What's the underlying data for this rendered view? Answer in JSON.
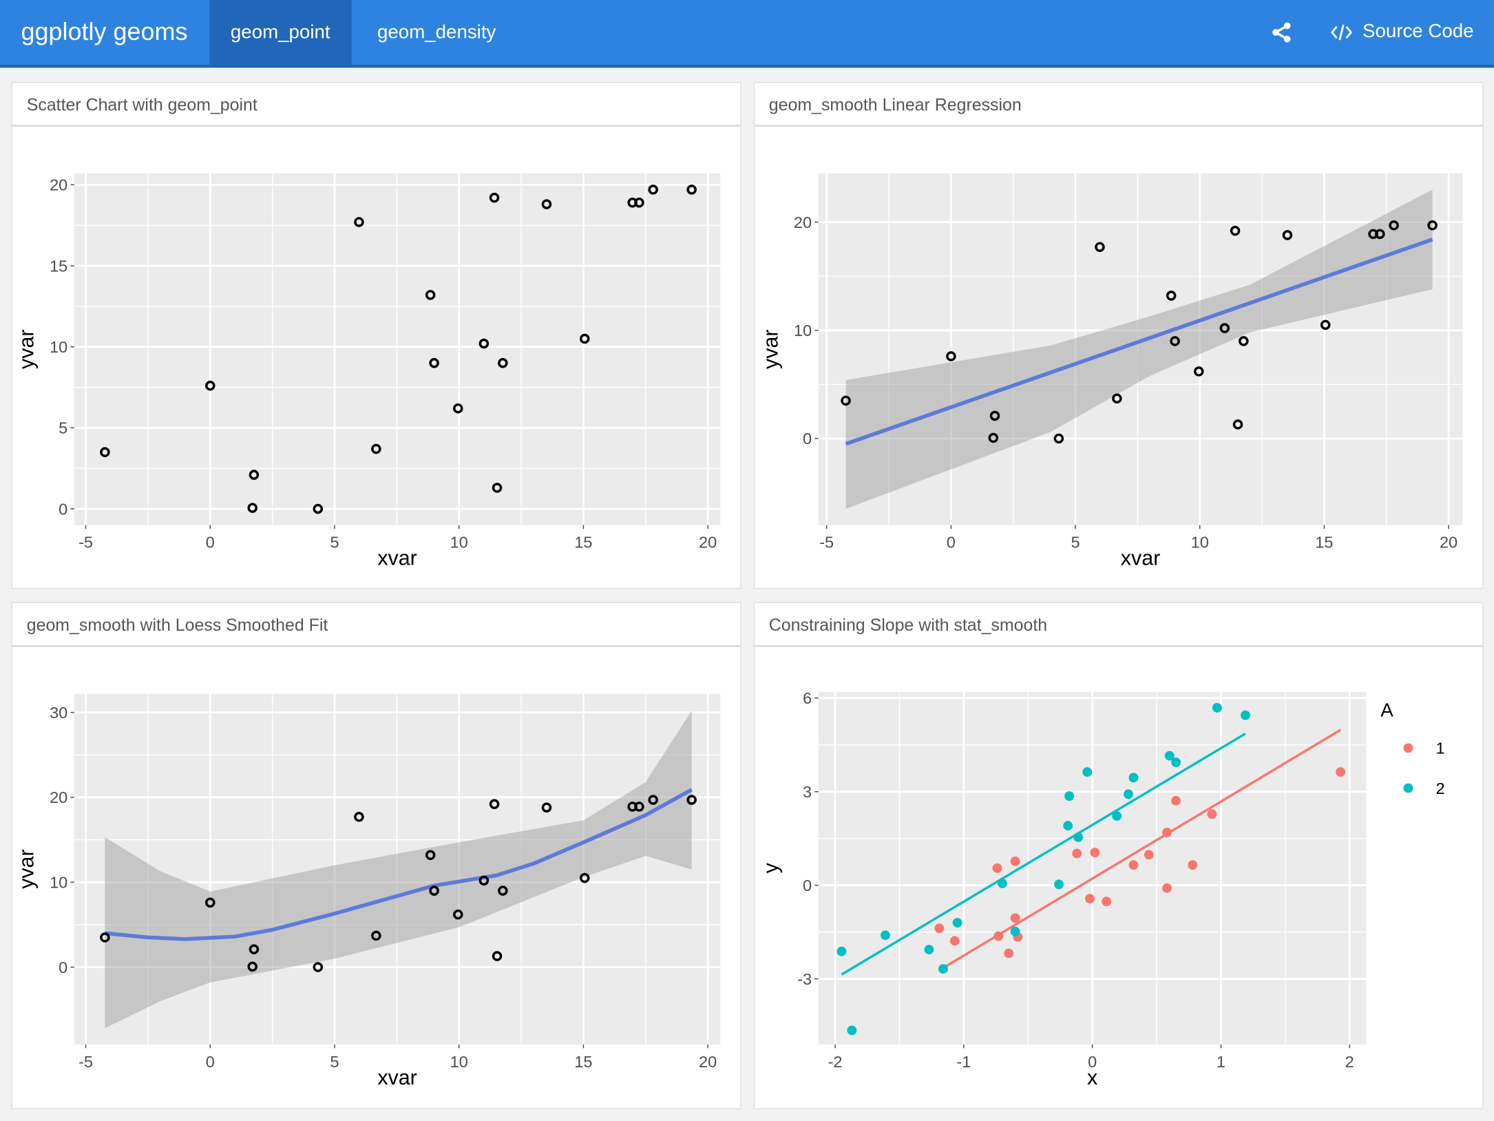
{
  "header": {
    "title": "ggplotly geoms",
    "tabs": [
      {
        "label": "geom_point",
        "active": true
      },
      {
        "label": "geom_density",
        "active": false
      }
    ],
    "share_icon": "share-icon",
    "source_code_icon": "code-icon",
    "source_code_label": "Source Code",
    "colors": {
      "navbar": "#2f83e0",
      "active_tab": "#2166b8"
    }
  },
  "cards": [
    {
      "title": "Scatter Chart with geom_point"
    },
    {
      "title": "geom_smooth Linear Regression"
    },
    {
      "title": "geom_smooth with Loess Smoothed Fit"
    },
    {
      "title": "Constraining Slope with stat_smooth"
    }
  ],
  "chart_data": [
    {
      "type": "scatter",
      "xlabel": "xvar",
      "ylabel": "yvar",
      "xlim": [
        -5.46,
        20.5
      ],
      "ylim": [
        -1,
        20.7
      ],
      "xticks": [
        -5,
        0,
        5,
        10,
        15,
        20
      ],
      "yticks": [
        0,
        5,
        10,
        15,
        20
      ],
      "grid": true,
      "points": {
        "x": [
          -4.23,
          0,
          1.76,
          1.7,
          4.33,
          5.98,
          6.67,
          8.85,
          9.0,
          9.96,
          11.0,
          11.42,
          11.53,
          11.76,
          13.52,
          15.05,
          16.97,
          17.24,
          17.8,
          19.35
        ],
        "y": [
          3.5,
          7.6,
          2.1,
          0.06,
          0,
          17.7,
          3.7,
          13.2,
          9.0,
          6.2,
          10.2,
          19.2,
          1.3,
          9.0,
          18.8,
          10.5,
          18.9,
          18.9,
          19.7,
          19.7
        ]
      }
    },
    {
      "type": "scatter",
      "xlabel": "xvar",
      "ylabel": "yvar",
      "xlim": [
        -5.33,
        20.56
      ],
      "ylim": [
        -8.0,
        24.5
      ],
      "xticks": [
        -5,
        0,
        5,
        10,
        15,
        20
      ],
      "yticks": [
        0,
        10,
        20
      ],
      "grid": true,
      "points": {
        "x": [
          -4.23,
          0,
          1.76,
          1.7,
          4.33,
          5.98,
          6.67,
          8.85,
          9.0,
          9.96,
          11.0,
          11.42,
          11.53,
          11.76,
          13.52,
          15.05,
          16.97,
          17.24,
          17.8,
          19.35
        ],
        "y": [
          3.5,
          7.6,
          2.1,
          0.06,
          0,
          17.7,
          3.7,
          13.2,
          9.0,
          6.2,
          10.2,
          19.2,
          1.3,
          9.0,
          18.8,
          10.5,
          18.9,
          18.9,
          19.7,
          19.7
        ]
      },
      "fit": {
        "method": "lm",
        "color": "#5b7bd6",
        "x": [
          -4.23,
          19.35
        ],
        "y": [
          -0.5,
          18.4
        ]
      },
      "band": {
        "x": [
          -4.23,
          4.0,
          8.0,
          12.0,
          19.35
        ],
        "upper": [
          5.4,
          8.6,
          11.3,
          14.2,
          23.0
        ],
        "lower": [
          -6.5,
          0.6,
          5.8,
          9.8,
          13.8
        ]
      }
    },
    {
      "type": "scatter",
      "xlabel": "xvar",
      "ylabel": "yvar",
      "xlim": [
        -5.46,
        20.5
      ],
      "ylim": [
        -9.1,
        32.2
      ],
      "xticks": [
        -5,
        0,
        5,
        10,
        15,
        20
      ],
      "yticks": [
        0,
        10,
        20,
        30
      ],
      "grid": true,
      "points": {
        "x": [
          -4.23,
          0,
          1.76,
          1.7,
          4.33,
          5.98,
          6.67,
          8.85,
          9.0,
          9.96,
          11.0,
          11.42,
          11.53,
          11.76,
          13.52,
          15.05,
          16.97,
          17.24,
          17.8,
          19.35
        ],
        "y": [
          3.5,
          7.6,
          2.1,
          0.06,
          0,
          17.7,
          3.7,
          13.2,
          9.0,
          6.2,
          10.2,
          19.2,
          1.3,
          9.0,
          18.8,
          10.5,
          18.9,
          18.9,
          19.7,
          19.7
        ]
      },
      "fit": {
        "method": "loess",
        "color": "#5b7bd6",
        "x": [
          -4.23,
          -2.5,
          -1,
          1,
          2.5,
          5,
          9,
          11.5,
          13,
          15,
          17.5,
          19.35
        ],
        "y": [
          4.0,
          3.5,
          3.3,
          3.6,
          4.4,
          6.3,
          9.6,
          10.8,
          12.2,
          14.7,
          17.9,
          20.9
        ]
      },
      "band": {
        "x": [
          -4.23,
          -2,
          0,
          5,
          10,
          15,
          17.5,
          19.35
        ],
        "upper": [
          15.3,
          11.3,
          8.9,
          12,
          14.7,
          17.3,
          21.8,
          30.2
        ],
        "lower": [
          -7.2,
          -4,
          -1.8,
          1,
          4.7,
          10.6,
          13.1,
          11.5
        ]
      }
    },
    {
      "type": "scatter",
      "xlabel": "x",
      "ylabel": "y",
      "xlim": [
        -2.13,
        2.13
      ],
      "ylim": [
        -5.1,
        6.2
      ],
      "xticks": [
        -2,
        -1,
        0,
        1,
        2
      ],
      "yticks": [
        -3,
        0,
        3,
        6
      ],
      "grid": true,
      "legend": {
        "title": "A",
        "position": "right"
      },
      "series": [
        {
          "name": "1",
          "color": "#f8766d",
          "x": [
            -0.74,
            -0.6,
            -1.19,
            -1.07,
            -0.73,
            -0.65,
            -0.6,
            -0.58,
            -0.12,
            0.02,
            -0.02,
            0.11,
            0.32,
            0.44,
            0.58,
            0.65,
            0.58,
            0.78,
            0.93,
            1.93
          ],
          "y": [
            0.55,
            0.77,
            -1.38,
            -1.78,
            -1.63,
            -2.18,
            -1.05,
            -1.66,
            1.02,
            1.05,
            -0.43,
            -0.52,
            0.65,
            0.98,
            1.69,
            2.71,
            -0.09,
            0.65,
            2.28,
            3.63
          ],
          "fit": {
            "x": [
              -1.16,
              1.93
            ],
            "y": [
              -2.65,
              4.98
            ]
          }
        },
        {
          "name": "2",
          "color": "#00bfc4",
          "x": [
            -1.95,
            -1.87,
            -1.61,
            -1.27,
            -1.16,
            -1.05,
            -0.7,
            -0.6,
            -0.26,
            -0.19,
            -0.18,
            -0.11,
            -0.04,
            0.19,
            0.28,
            0.32,
            0.6,
            0.65,
            0.97,
            1.19
          ],
          "y": [
            -2.12,
            -4.65,
            -1.6,
            -2.06,
            -2.68,
            -1.2,
            0.06,
            -1.48,
            0.03,
            1.91,
            2.86,
            1.54,
            3.63,
            2.22,
            2.92,
            3.45,
            4.15,
            3.94,
            5.69,
            5.45
          ],
          "fit": {
            "x": [
              -1.95,
              1.19
            ],
            "y": [
              -2.86,
              4.86
            ]
          }
        }
      ]
    }
  ]
}
